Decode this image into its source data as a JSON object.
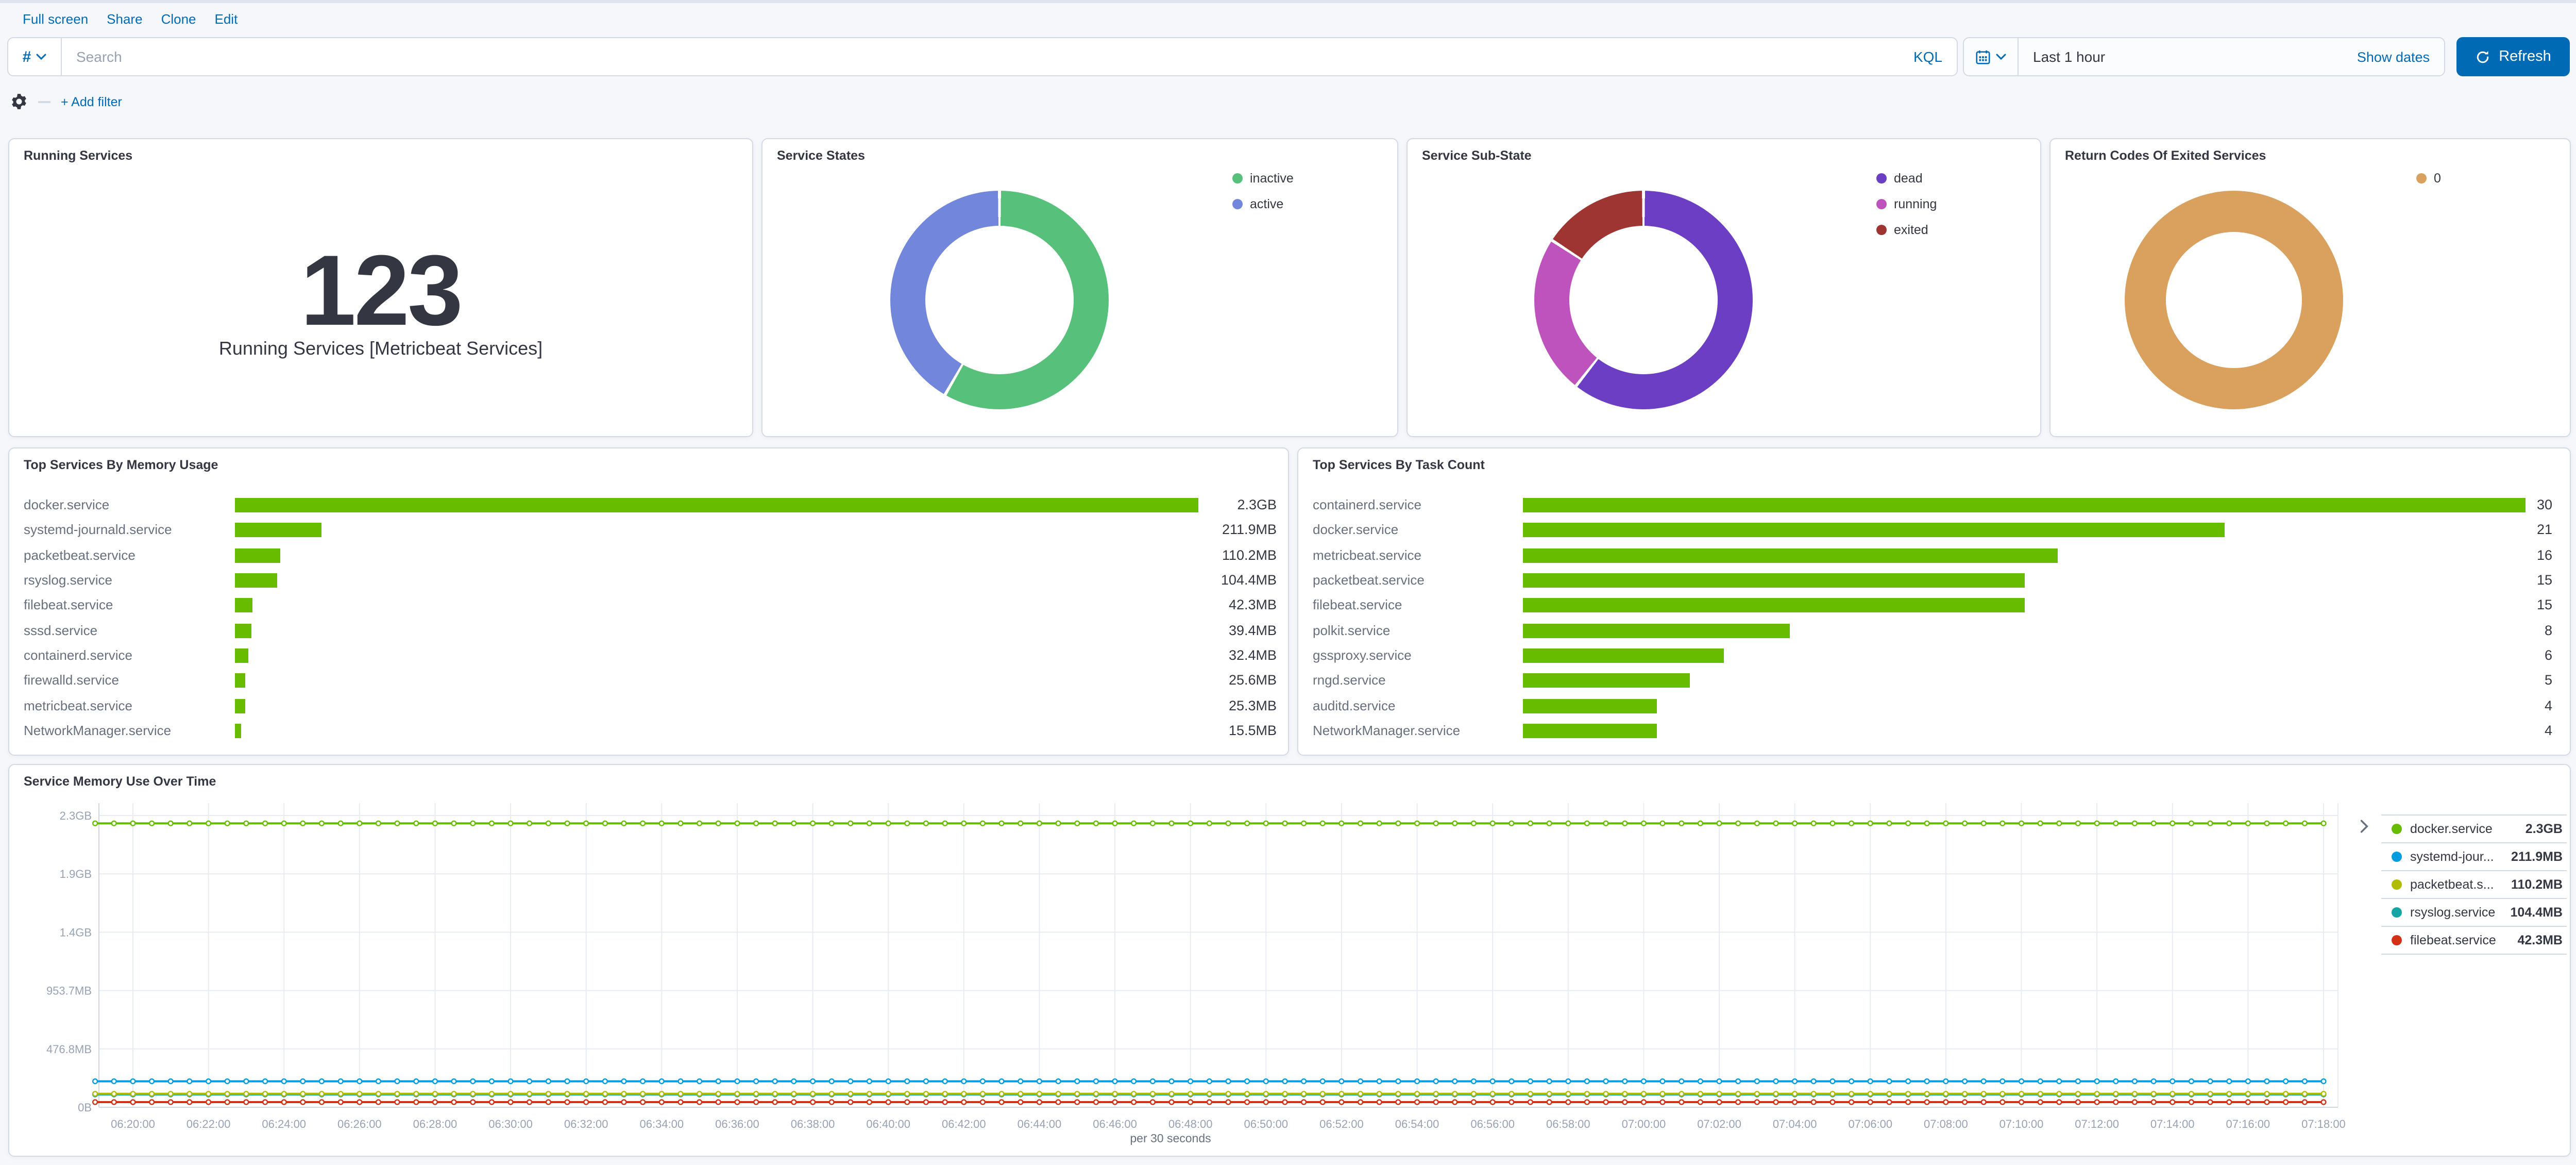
{
  "header": {
    "nav_links": [
      "Full screen",
      "Share",
      "Clone",
      "Edit"
    ],
    "query": {
      "prepend": "#",
      "placeholder": "Search",
      "language": "KQL"
    },
    "time_picker": {
      "value": "Last 1 hour",
      "show_dates": "Show dates",
      "refresh": "Refresh"
    },
    "filter_bar": {
      "add_filter": "+ Add filter"
    }
  },
  "palette": {
    "link_blue": "#006BB4",
    "button_blue": "#006BB4",
    "text_dark": "#343741",
    "text_gray": "#69707D",
    "axis_gray": "#98A2B3",
    "panel_border": "#D3DAE6",
    "page_bg": "#F5F7FA",
    "grid": "#E8ECF2",
    "bar_green": "#68BC00"
  },
  "metric_panel": {
    "title": "Running Services",
    "value": "123",
    "caption": "Running Services [Metricbeat Services]"
  },
  "chart_data": [
    {
      "id": "service_states",
      "type": "pie",
      "title": "Service States",
      "labels": [
        "inactive",
        "active"
      ],
      "values": [
        58.3,
        41.7
      ],
      "colors": [
        "#57C17B",
        "#7287DB"
      ],
      "legend_position": "right",
      "donut": true
    },
    {
      "id": "service_sub_state",
      "type": "pie",
      "title": "Service Sub-State",
      "labels": [
        "dead",
        "running",
        "exited"
      ],
      "values": [
        60.6,
        23.6,
        15.8
      ],
      "colors": [
        "#6B3EC3",
        "#BE53BE",
        "#9E3533"
      ],
      "legend_position": "right",
      "donut": true
    },
    {
      "id": "return_codes",
      "type": "pie",
      "title": "Return Codes Of Exited Services",
      "labels": [
        "0"
      ],
      "values": [
        100
      ],
      "colors": [
        "#D9A05E"
      ],
      "legend_position": "right",
      "donut": true
    },
    {
      "id": "top_memory",
      "type": "bar",
      "orientation": "horizontal",
      "title": "Top Services By Memory Usage",
      "categories": [
        "docker.service",
        "systemd-journald.service",
        "packetbeat.service",
        "rsyslog.service",
        "filebeat.service",
        "sssd.service",
        "containerd.service",
        "firewalld.service",
        "metricbeat.service",
        "NetworkManager.service"
      ],
      "values_mb": [
        2355.2,
        211.9,
        110.2,
        104.4,
        42.3,
        39.4,
        32.4,
        25.6,
        25.3,
        15.5
      ],
      "value_labels": [
        "2.3GB",
        "211.9MB",
        "110.2MB",
        "104.4MB",
        "42.3MB",
        "39.4MB",
        "32.4MB",
        "25.6MB",
        "25.3MB",
        "15.5MB"
      ],
      "xlim_mb": [
        0,
        2355.2
      ],
      "color": "#68BC00"
    },
    {
      "id": "top_tasks",
      "type": "bar",
      "orientation": "horizontal",
      "title": "Top Services By Task Count",
      "categories": [
        "containerd.service",
        "docker.service",
        "metricbeat.service",
        "packetbeat.service",
        "filebeat.service",
        "polkit.service",
        "gssproxy.service",
        "rngd.service",
        "auditd.service",
        "NetworkManager.service"
      ],
      "values": [
        30,
        21,
        16,
        15,
        15,
        8,
        6,
        5,
        4,
        4
      ],
      "value_labels": [
        "30",
        "21",
        "16",
        "15",
        "15",
        "8",
        "6",
        "5",
        "4",
        "4"
      ],
      "xlim": [
        0,
        30
      ],
      "color": "#68BC00"
    },
    {
      "id": "memory_over_time",
      "type": "line",
      "title": "Service Memory Use Over Time",
      "x_axis_caption": "per 30 seconds",
      "x_tick_labels": [
        "06:20:00",
        "06:22:00",
        "06:24:00",
        "06:26:00",
        "06:28:00",
        "06:30:00",
        "06:32:00",
        "06:34:00",
        "06:36:00",
        "06:38:00",
        "06:40:00",
        "06:42:00",
        "06:44:00",
        "06:46:00",
        "06:48:00",
        "06:50:00",
        "06:52:00",
        "06:54:00",
        "06:56:00",
        "06:58:00",
        "07:00:00",
        "07:02:00",
        "07:04:00",
        "07:06:00",
        "07:08:00",
        "07:10:00",
        "07:12:00",
        "07:14:00",
        "07:16:00",
        "07:18:00"
      ],
      "y_tick_labels": [
        "2.3GB",
        "1.9GB",
        "1.4GB",
        "953.7MB",
        "476.8MB",
        "0B"
      ],
      "ylim_mb": [
        0,
        2384.2
      ],
      "grid": true,
      "legend_position": "right",
      "series": [
        {
          "label": "docker.service",
          "value_label": "2.3GB",
          "value_mb": 2320,
          "shape": "flat",
          "color": "#68BC00"
        },
        {
          "label": "systemd-jour...",
          "value_label": "211.9MB",
          "value_mb": 211.9,
          "shape": "flat",
          "color": "#009CE0"
        },
        {
          "label": "packetbeat.s...",
          "value_label": "110.2MB",
          "value_mb": 110.2,
          "shape": "flat",
          "color": "#B0BC00"
        },
        {
          "label": "rsyslog.service",
          "value_label": "104.4MB",
          "value_mb": 104.4,
          "shape": "flat",
          "color": "#16A5A5"
        },
        {
          "label": "filebeat.service",
          "value_label": "42.3MB",
          "value_mb": 42.3,
          "shape": "flat",
          "color": "#D33115"
        }
      ]
    }
  ]
}
